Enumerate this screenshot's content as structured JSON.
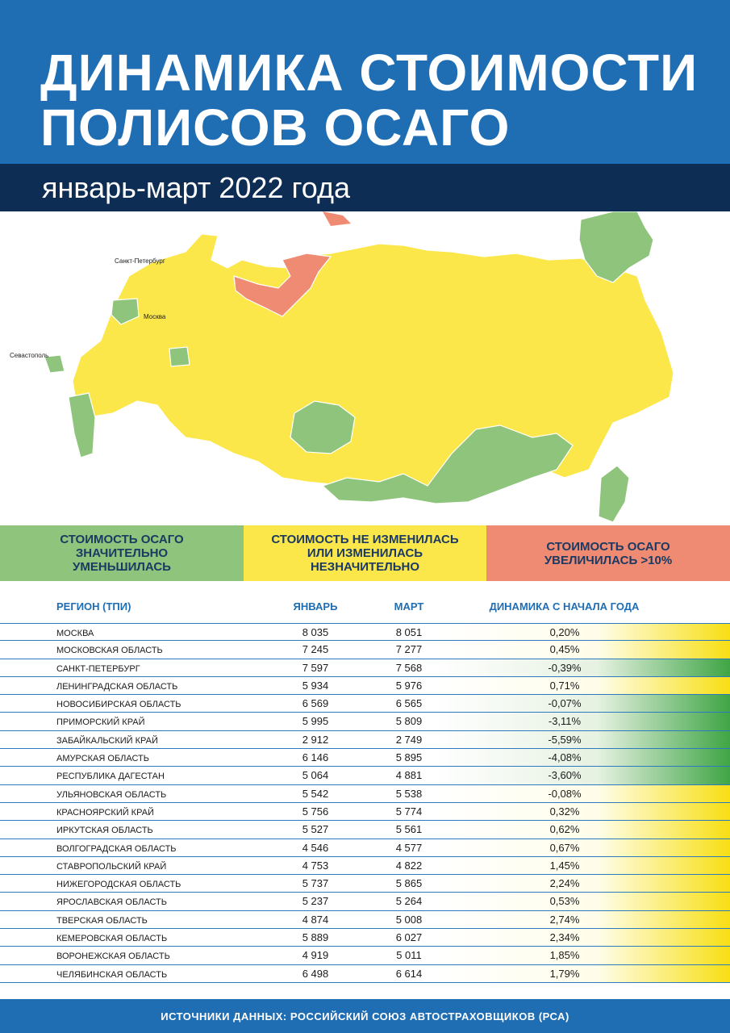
{
  "header": {
    "title_line1": "ДИНАМИКА СТОИМОСТИ",
    "title_line2": "ПОЛИСОВ ОСАГО",
    "subtitle": "январь-март 2022 года"
  },
  "map": {
    "labels": {
      "spb": "Санкт-Петербург",
      "moscow": "Москва",
      "sevastopol": "Севастополь"
    },
    "colors": {
      "decreased": "#8ec47b",
      "unchanged": "#fbe74a",
      "increased": "#ef8a73"
    }
  },
  "legend": {
    "green": "СТОИМОСТЬ ОСАГО ЗНАЧИТЕЛЬНО УМЕНЬШИЛАСЬ",
    "yellow": "СТОИМОСТЬ НЕ ИЗМЕНИЛАСЬ ИЛИ ИЗМЕНИЛАСЬ НЕЗНАЧИТЕЛЬНО",
    "red": "СТОИМОСТЬ ОСАГО УВЕЛИЧИЛАСЬ >10%"
  },
  "table": {
    "headers": {
      "region": "РЕГИОН (ТПИ)",
      "jan": "ЯНВАРЬ",
      "mar": "МАРТ",
      "dyn": "ДИНАМИКА С НАЧАЛА ГОДА"
    },
    "rows": [
      {
        "region": "МОСКВА",
        "jan": "8 035",
        "mar": "8 051",
        "dyn": "0,20%",
        "trend": "yellow"
      },
      {
        "region": "МОСКОВСКАЯ ОБЛАСТЬ",
        "jan": "7 245",
        "mar": "7 277",
        "dyn": "0,45%",
        "trend": "yellow"
      },
      {
        "region": "САНКТ-ПЕТЕРБУРГ",
        "jan": "7 597",
        "mar": "7 568",
        "dyn": "-0,39%",
        "trend": "green"
      },
      {
        "region": "ЛЕНИНГРАДСКАЯ ОБЛАСТЬ",
        "jan": "5 934",
        "mar": "5 976",
        "dyn": "0,71%",
        "trend": "yellow"
      },
      {
        "region": "НОВОСИБИРСКАЯ ОБЛАСТЬ",
        "jan": "6 569",
        "mar": "6 565",
        "dyn": "-0,07%",
        "trend": "green"
      },
      {
        "region": "ПРИМОРСКИЙ КРАЙ",
        "jan": "5 995",
        "mar": "5 809",
        "dyn": "-3,11%",
        "trend": "green"
      },
      {
        "region": "ЗАБАЙКАЛЬСКИЙ КРАЙ",
        "jan": "2 912",
        "mar": "2 749",
        "dyn": "-5,59%",
        "trend": "green"
      },
      {
        "region": "АМУРСКАЯ ОБЛАСТЬ",
        "jan": "6 146",
        "mar": "5 895",
        "dyn": "-4,08%",
        "trend": "green"
      },
      {
        "region": "РЕСПУБЛИКА ДАГЕСТАН",
        "jan": "5 064",
        "mar": "4 881",
        "dyn": "-3,60%",
        "trend": "green"
      },
      {
        "region": "УЛЬЯНОВСКАЯ ОБЛАСТЬ",
        "jan": "5 542",
        "mar": "5 538",
        "dyn": "-0,08%",
        "trend": "yellow"
      },
      {
        "region": "КРАСНОЯРСКИЙ КРАЙ",
        "jan": "5 756",
        "mar": "5 774",
        "dyn": "0,32%",
        "trend": "yellow"
      },
      {
        "region": "ИРКУТСКАЯ ОБЛАСТЬ",
        "jan": "5 527",
        "mar": "5 561",
        "dyn": "0,62%",
        "trend": "yellow"
      },
      {
        "region": "ВОЛГОГРАДСКАЯ ОБЛАСТЬ",
        "jan": "4 546",
        "mar": "4 577",
        "dyn": "0,67%",
        "trend": "yellow"
      },
      {
        "region": "СТАВРОПОЛЬСКИЙ КРАЙ",
        "jan": "4 753",
        "mar": "4 822",
        "dyn": "1,45%",
        "trend": "yellow"
      },
      {
        "region": "НИЖЕГОРОДСКАЯ ОБЛАСТЬ",
        "jan": "5 737",
        "mar": "5 865",
        "dyn": "2,24%",
        "trend": "yellow"
      },
      {
        "region": "ЯРОСЛАВСКАЯ ОБЛАСТЬ",
        "jan": "5 237",
        "mar": "5 264",
        "dyn": "0,53%",
        "trend": "yellow"
      },
      {
        "region": "ТВЕРСКАЯ ОБЛАСТЬ",
        "jan": "4 874",
        "mar": "5 008",
        "dyn": "2,74%",
        "trend": "yellow"
      },
      {
        "region": "КЕМЕРОВСКАЯ ОБЛАСТЬ",
        "jan": "5 889",
        "mar": "6 027",
        "dyn": "2,34%",
        "trend": "yellow"
      },
      {
        "region": "ВОРОНЕЖСКАЯ ОБЛАСТЬ",
        "jan": "4 919",
        "mar": "5 011",
        "dyn": "1,85%",
        "trend": "yellow"
      },
      {
        "region": "ЧЕЛЯБИНСКАЯ ОБЛАСТЬ",
        "jan": "6 498",
        "mar": "6 614",
        "dyn": "1,79%",
        "trend": "yellow"
      }
    ]
  },
  "footer": "ИСТОЧНИКИ ДАННЫХ: РОССИЙСКИЙ СОЮЗ АВТОСТРАХОВЩИКОВ (РСА)"
}
